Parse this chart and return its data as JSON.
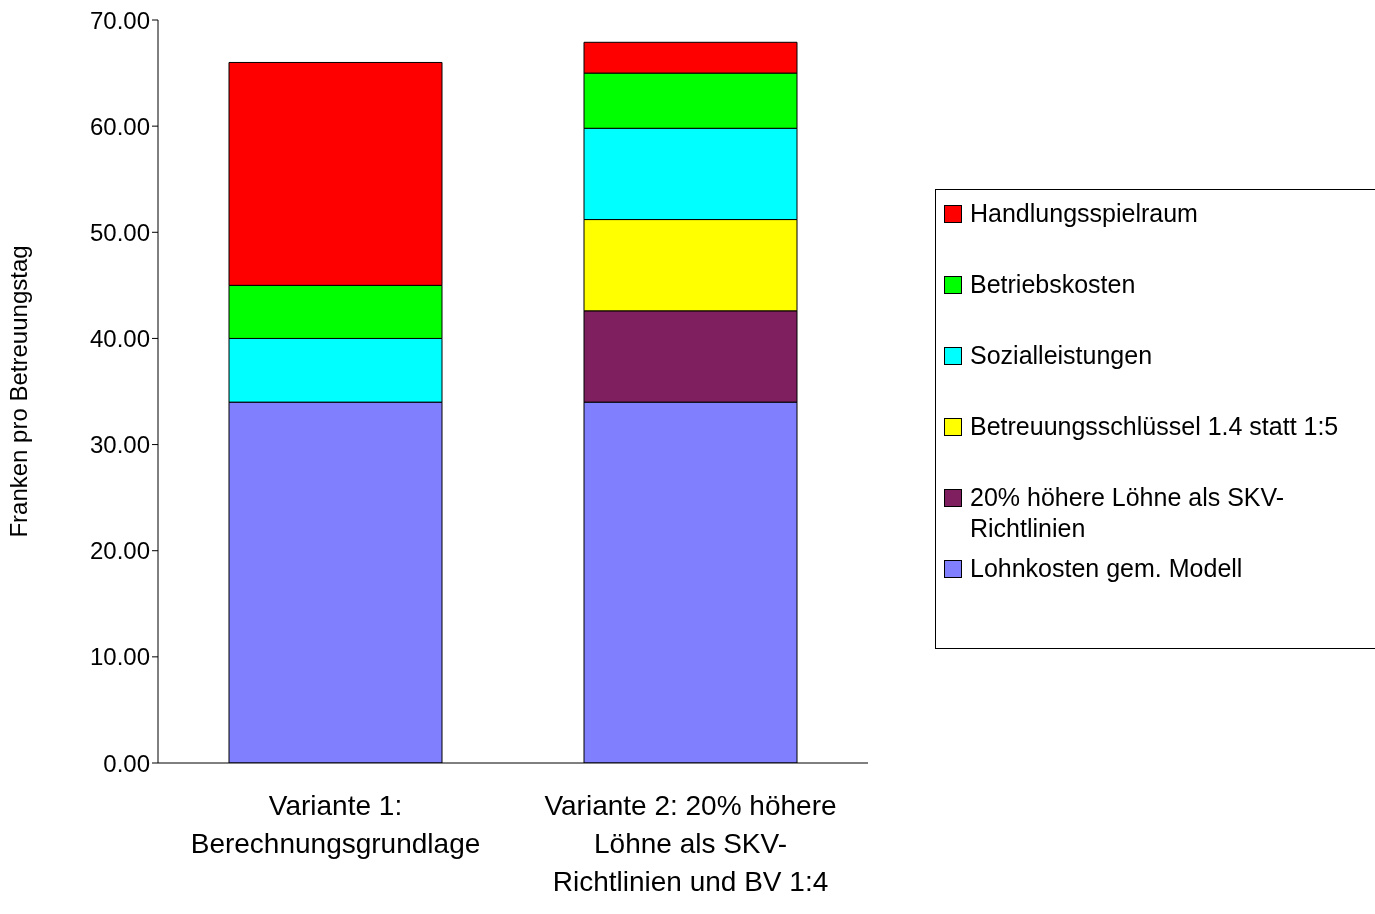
{
  "chart_data": {
    "type": "bar",
    "stacked": true,
    "ylabel": "Franken pro Betreuungstag",
    "categories": [
      "Variante 1: Berechnungsgrundlage",
      "Variante 2: 20% höhere Löhne als SKV-Richtlinien und BV 1:4"
    ],
    "series": [
      {
        "name": "Lohnkosten gem. Modell",
        "color": "#8080ff",
        "values": [
          34,
          34
        ]
      },
      {
        "name": "20% höhere Löhne als SKV-Richtlinien",
        "color": "#7f1f5f",
        "values": [
          null,
          8.6
        ]
      },
      {
        "name": "Betreuungsschlüssel 1.4 statt 1:5",
        "color": "#ffff00",
        "values": [
          null,
          8.6
        ]
      },
      {
        "name": "Sozialleistungen",
        "color": "#00ffff",
        "values": [
          6,
          8.6
        ]
      },
      {
        "name": "Betriebskosten",
        "color": "#00ff00",
        "values": [
          5,
          5.2
        ]
      },
      {
        "name": "Handlungsspielraum",
        "color": "#ff0000",
        "values": [
          21,
          2.9
        ]
      }
    ],
    "ylim": [
      0,
      70
    ],
    "yticks": [
      {
        "value": 0,
        "label": "0.00"
      },
      {
        "value": 10,
        "label": "10.00"
      },
      {
        "value": 20,
        "label": "20.00"
      },
      {
        "value": 30,
        "label": "30.00"
      },
      {
        "value": 40,
        "label": "40.00"
      },
      {
        "value": 50,
        "label": "50.00"
      },
      {
        "value": 60,
        "label": "60.00"
      },
      {
        "value": 70,
        "label": "70.00"
      }
    ],
    "grid": false,
    "legend": "right"
  }
}
